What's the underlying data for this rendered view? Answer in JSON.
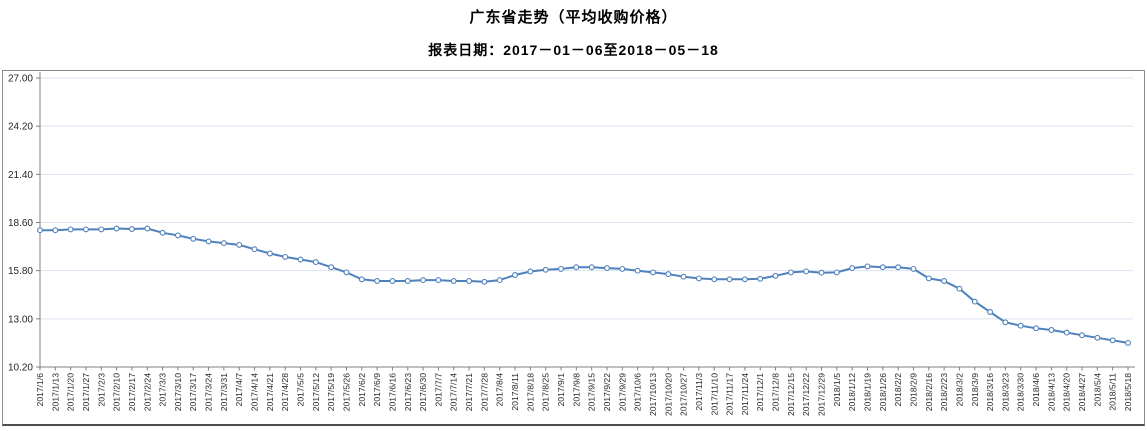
{
  "title": "广东省走势（平均收购价格）",
  "subtitle": "报表日期：2017－01－06至2018－05－18",
  "chart_data": {
    "type": "line",
    "title": "广东省走势（平均收购价格）",
    "subtitle": "报表日期：2017－01－06至2018－05－18",
    "series_name": "平均收购价格",
    "xlabel": "",
    "ylabel": "",
    "ylim": [
      10.2,
      27.0
    ],
    "ytick_step": 2.8,
    "yticks": [
      "10.20",
      "13.00",
      "15.80",
      "18.60",
      "21.40",
      "24.20",
      "27.00"
    ],
    "grid": true,
    "legend_position": "none",
    "line_color": "#4F81BD",
    "marker": "open-circle",
    "x": [
      "2017/1/6",
      "2017/1/13",
      "2017/1/20",
      "2017/1/27",
      "2017/2/3",
      "2017/2/10",
      "2017/2/17",
      "2017/2/24",
      "2017/3/3",
      "2017/3/10",
      "2017/3/17",
      "2017/3/24",
      "2017/3/31",
      "2017/4/7",
      "2017/4/14",
      "2017/4/21",
      "2017/4/28",
      "2017/5/5",
      "2017/5/12",
      "2017/5/19",
      "2017/5/26",
      "2017/6/2",
      "2017/6/9",
      "2017/6/16",
      "2017/6/23",
      "2017/6/30",
      "2017/7/7",
      "2017/7/14",
      "2017/7/21",
      "2017/7/28",
      "2017/8/4",
      "2017/8/11",
      "2017/8/18",
      "2017/8/25",
      "2017/9/1",
      "2017/9/8",
      "2017/9/15",
      "2017/9/22",
      "2017/9/29",
      "2017/10/6",
      "2017/10/13",
      "2017/10/20",
      "2017/10/27",
      "2017/11/3",
      "2017/11/10",
      "2017/11/17",
      "2017/11/24",
      "2017/12/1",
      "2017/12/8",
      "2017/12/15",
      "2017/12/22",
      "2017/12/29",
      "2018/1/5",
      "2018/1/12",
      "2018/1/19",
      "2018/1/26",
      "2018/2/2",
      "2018/2/9",
      "2018/2/16",
      "2018/2/23",
      "2018/3/2",
      "2018/3/9",
      "2018/3/16",
      "2018/3/23",
      "2018/3/30",
      "2018/4/6",
      "2018/4/13",
      "2018/4/20",
      "2018/4/27",
      "2018/5/4",
      "2018/5/11",
      "2018/5/18"
    ],
    "values": [
      18.15,
      18.15,
      18.2,
      18.2,
      18.2,
      18.25,
      18.22,
      18.25,
      18.0,
      17.85,
      17.65,
      17.5,
      17.4,
      17.3,
      17.05,
      16.8,
      16.6,
      16.45,
      16.3,
      16.0,
      15.7,
      15.3,
      15.2,
      15.2,
      15.2,
      15.25,
      15.25,
      15.2,
      15.2,
      15.15,
      15.25,
      15.55,
      15.75,
      15.85,
      15.9,
      16.0,
      16.0,
      15.95,
      15.9,
      15.8,
      15.7,
      15.6,
      15.45,
      15.35,
      15.3,
      15.3,
      15.3,
      15.33,
      15.5,
      15.7,
      15.76,
      15.68,
      15.7,
      15.95,
      16.05,
      16.0,
      16.0,
      15.9,
      15.35,
      15.2,
      14.75,
      14.0,
      13.4,
      12.8,
      12.6,
      12.45,
      12.35,
      12.2,
      12.05,
      11.9,
      11.75,
      11.6
    ]
  },
  "colors": {
    "line": "#4F81BD",
    "grid": "#dbe3ef",
    "axis": "#808080",
    "tick_text": "#262626",
    "border": "#8c8c8c"
  }
}
